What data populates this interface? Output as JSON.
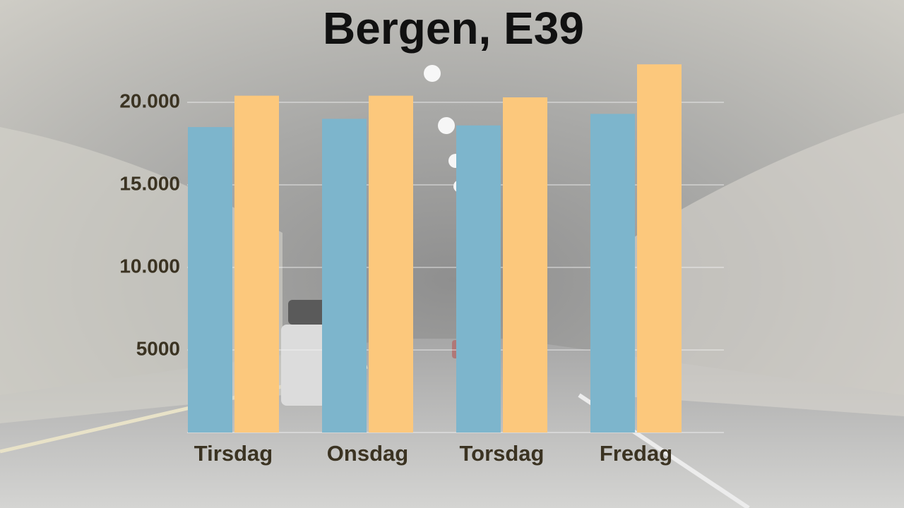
{
  "chart_data": {
    "type": "bar",
    "title": "Bergen, E39",
    "categories": [
      "Tirsdag",
      "Onsdag",
      "Torsdag",
      "Fredag"
    ],
    "series": [
      {
        "color": "#7db5cc",
        "values": [
          18500,
          19000,
          18600,
          19300
        ]
      },
      {
        "color": "#fcc87c",
        "values": [
          20400,
          20400,
          20300,
          22300
        ]
      }
    ],
    "ylim": [
      0,
      22500
    ],
    "yticks": [
      5000,
      {
        "value": 10000,
        "label": "10.000"
      },
      {
        "value": 15000,
        "label": "15.000"
      },
      {
        "value": 20000,
        "label": "20.000"
      }
    ],
    "grid": true
  }
}
